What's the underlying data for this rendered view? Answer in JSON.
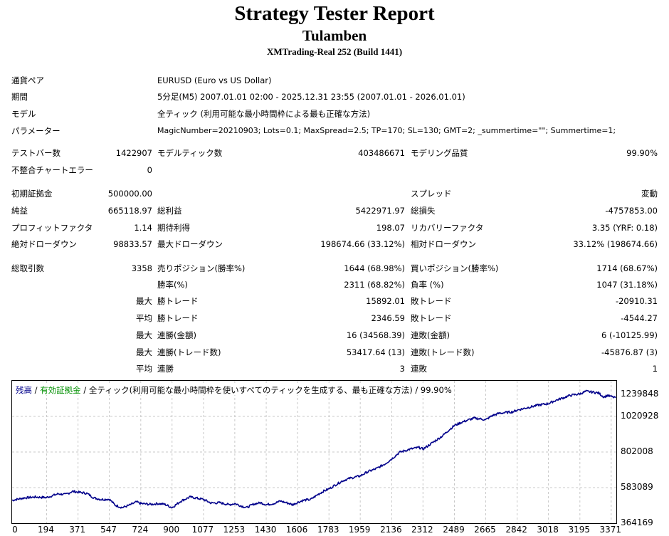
{
  "header": {
    "title": "Strategy Tester Report",
    "subtitle": "Tulamben",
    "account": "XMTrading-Real 252 (Build 1441)"
  },
  "info": [
    {
      "label": "通貨ペア",
      "value": "EURUSD (Euro vs US Dollar)"
    },
    {
      "label": "期間",
      "value": "5分足(M5) 2007.01.01 02:00 - 2025.12.31 23:55 (2007.01.01 - 2026.01.01)"
    },
    {
      "label": "モデル",
      "value": "全ティック (利用可能な最小時間枠による最も正確な方法)"
    },
    {
      "label": "パラメーター",
      "value": "MagicNumber=20210903; Lots=0.1; MaxSpread=2.5; TP=170; SL=130; GMT=2; _summertime=\"\"; Summertime=1;"
    }
  ],
  "stats": {
    "test_bars_label": "テストバー数",
    "test_bars": "1422907",
    "model_ticks_label": "モデルティック数",
    "model_ticks": "403486671",
    "model_quality_label": "モデリング品質",
    "model_quality": "99.90%",
    "mismatch_label": "不整合チャートエラー",
    "mismatch": "0",
    "initial_deposit_label": "初期証拠金",
    "initial_deposit": "500000.00",
    "spread_label": "スプレッド",
    "spread": "変動",
    "net_profit_label": "純益",
    "net_profit": "665118.97",
    "gross_profit_label": "総利益",
    "gross_profit": "5422971.97",
    "gross_loss_label": "総損失",
    "gross_loss": "-4757853.00",
    "profit_factor_label": "プロフィットファクタ",
    "profit_factor": "1.14",
    "expected_payoff_label": "期待利得",
    "expected_payoff": "198.07",
    "recovery_factor_label": "リカバリーファクタ",
    "recovery_factor": "3.35 (YRF: 0.18)",
    "abs_dd_label": "絶対ドローダウン",
    "abs_dd": "98833.57",
    "max_dd_label": "最大ドローダウン",
    "max_dd": "198674.66 (33.12%)",
    "rel_dd_label": "相対ドローダウン",
    "rel_dd": "33.12% (198674.66)",
    "total_trades_label": "総取引数",
    "total_trades": "3358",
    "short_label": "売りポジション(勝率%)",
    "short": "1644 (68.98%)",
    "long_label": "買いポジション(勝率%)",
    "long": "1714 (68.67%)",
    "win_rate_label": "勝率(%)",
    "win_rate": "2311 (68.82%)",
    "loss_rate_label": "負率 (%)",
    "loss_rate": "1047 (31.18%)",
    "max_label": "最大",
    "avg_label": "平均",
    "largest_win_label": "勝トレード",
    "largest_win": "15892.01",
    "largest_loss_label": "敗トレード",
    "largest_loss": "-20910.31",
    "avg_win_label": "勝トレード",
    "avg_win": "2346.59",
    "avg_loss_label": "敗トレード",
    "avg_loss": "-4544.27",
    "max_consec_wins_label": "連勝(金額)",
    "max_consec_wins": "16 (34568.39)",
    "max_consec_losses_label": "連敗(金額)",
    "max_consec_losses": "6 (-10125.99)",
    "max_consec_profit_label": "連勝(トレード数)",
    "max_consec_profit": "53417.64 (13)",
    "max_consec_loss_label": "連敗(トレード数)",
    "max_consec_loss": "-45876.87 (3)",
    "avg_consec_wins_label": "連勝",
    "avg_consec_wins": "3",
    "avg_consec_losses_label": "連敗",
    "avg_consec_losses": "1"
  },
  "chart_data": {
    "type": "line",
    "legend": {
      "balance": "残高",
      "equity": "有効証拠金",
      "separator": " / ",
      "model": "全ティック(利用可能な最小時間枠を使いすべてのティックを生成する、最も正確な方法)",
      "quality": "99.90%"
    },
    "legend_placement": "top-left",
    "grid": true,
    "xlim": [
      0,
      3400
    ],
    "ylim": [
      364169,
      1239848
    ],
    "x_ticks": [
      0,
      194,
      371,
      547,
      724,
      900,
      1077,
      1253,
      1430,
      1606,
      1783,
      1959,
      2136,
      2312,
      2489,
      2665,
      2842,
      3018,
      3195,
      3371
    ],
    "y_ticks": [
      364169,
      583089,
      802008,
      1020928,
      1239848
    ],
    "series": [
      {
        "name": "残高",
        "color": "#00008b",
        "points": [
          [
            0,
            505000
          ],
          [
            70,
            520000
          ],
          [
            130,
            525000
          ],
          [
            194,
            522000
          ],
          [
            260,
            545000
          ],
          [
            300,
            540000
          ],
          [
            340,
            560000
          ],
          [
            371,
            555000
          ],
          [
            420,
            548000
          ],
          [
            460,
            520000
          ],
          [
            500,
            510000
          ],
          [
            547,
            512000
          ],
          [
            580,
            475000
          ],
          [
            620,
            460000
          ],
          [
            660,
            475000
          ],
          [
            700,
            495000
          ],
          [
            724,
            485000
          ],
          [
            780,
            480000
          ],
          [
            820,
            485000
          ],
          [
            860,
            480000
          ],
          [
            900,
            460000
          ],
          [
            950,
            500000
          ],
          [
            1000,
            525000
          ],
          [
            1030,
            520000
          ],
          [
            1077,
            510000
          ],
          [
            1120,
            488000
          ],
          [
            1170,
            490000
          ],
          [
            1220,
            478000
          ],
          [
            1253,
            485000
          ],
          [
            1290,
            470000
          ],
          [
            1320,
            460000
          ],
          [
            1360,
            482000
          ],
          [
            1400,
            490000
          ],
          [
            1430,
            478000
          ],
          [
            1470,
            485000
          ],
          [
            1510,
            500000
          ],
          [
            1550,
            488000
          ],
          [
            1580,
            478000
          ],
          [
            1606,
            492000
          ],
          [
            1640,
            505000
          ],
          [
            1680,
            510000
          ],
          [
            1720,
            540000
          ],
          [
            1750,
            560000
          ],
          [
            1783,
            575000
          ],
          [
            1820,
            600000
          ],
          [
            1860,
            625000
          ],
          [
            1900,
            640000
          ],
          [
            1959,
            655000
          ],
          [
            2000,
            680000
          ],
          [
            2050,
            700000
          ],
          [
            2100,
            730000
          ],
          [
            2136,
            760000
          ],
          [
            2180,
            800000
          ],
          [
            2240,
            820000
          ],
          [
            2290,
            830000
          ],
          [
            2312,
            820000
          ],
          [
            2340,
            840000
          ],
          [
            2380,
            870000
          ],
          [
            2420,
            900000
          ],
          [
            2450,
            930000
          ],
          [
            2489,
            965000
          ],
          [
            2530,
            985000
          ],
          [
            2570,
            1000000
          ],
          [
            2600,
            1010000
          ],
          [
            2640,
            1005000
          ],
          [
            2665,
            1000000
          ],
          [
            2700,
            1025000
          ],
          [
            2740,
            1040000
          ],
          [
            2780,
            1045000
          ],
          [
            2820,
            1050000
          ],
          [
            2842,
            1060000
          ],
          [
            2900,
            1075000
          ],
          [
            2960,
            1090000
          ],
          [
            3018,
            1100000
          ],
          [
            3060,
            1120000
          ],
          [
            3100,
            1135000
          ],
          [
            3140,
            1150000
          ],
          [
            3195,
            1160000
          ],
          [
            3230,
            1175000
          ],
          [
            3270,
            1170000
          ],
          [
            3300,
            1165000
          ],
          [
            3330,
            1140000
          ],
          [
            3350,
            1150000
          ],
          [
            3371,
            1143000
          ],
          [
            3395,
            1135000
          ]
        ]
      }
    ]
  }
}
